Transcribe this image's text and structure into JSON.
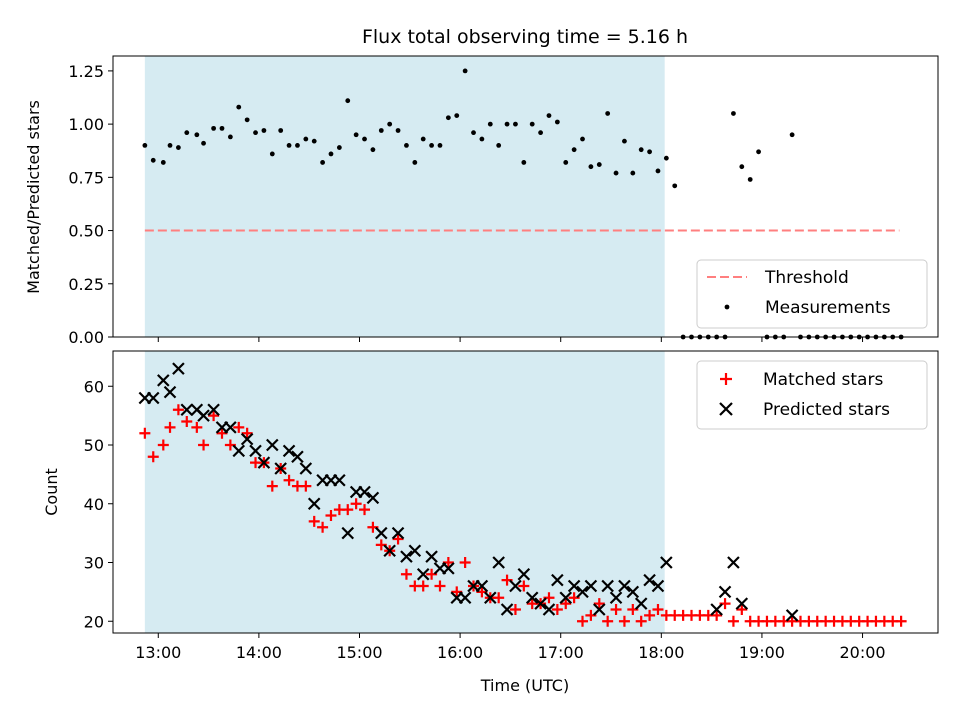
{
  "chart_data": [
    {
      "type": "scatter",
      "title": "Flux total observing time = 5.16 h",
      "xlabel": "",
      "ylabel": "Matched/Predicted stars",
      "ylim": [
        0,
        1.32
      ],
      "xlim": [
        "12:33",
        "20:45"
      ],
      "yticks": [
        0,
        0.25,
        0.5,
        0.75,
        1.0,
        1.25
      ],
      "ytick_labels": [
        "0.00",
        "0.25",
        "0.50",
        "0.75",
        "1.00",
        "1.25"
      ],
      "shaded_span": [
        "12:52",
        "18:02"
      ],
      "threshold": {
        "name": "Threshold",
        "y": 0.5,
        "x": [
          "12:52",
          "20:22"
        ],
        "color": "#ff7f7f"
      },
      "legend": {
        "placement": "bottom-right",
        "entries": [
          "Threshold",
          "Measurements"
        ]
      },
      "series": [
        {
          "name": "Measurements",
          "color": "#000000",
          "x": [
            "12:52",
            "12:57",
            "13:03",
            "13:07",
            "13:12",
            "13:17",
            "13:23",
            "13:27",
            "13:33",
            "13:38",
            "13:43",
            "13:48",
            "13:53",
            "13:58",
            "14:03",
            "14:08",
            "14:13",
            "14:18",
            "14:23",
            "14:28",
            "14:33",
            "14:38",
            "14:43",
            "14:48",
            "14:53",
            "14:58",
            "15:03",
            "15:08",
            "15:13",
            "15:18",
            "15:23",
            "15:28",
            "15:33",
            "15:38",
            "15:43",
            "15:48",
            "15:53",
            "15:58",
            "16:03",
            "16:08",
            "16:13",
            "16:18",
            "16:23",
            "16:28",
            "16:33",
            "16:38",
            "16:43",
            "16:48",
            "16:53",
            "16:58",
            "17:03",
            "17:08",
            "17:13",
            "17:18",
            "17:23",
            "17:28",
            "17:33",
            "17:38",
            "17:43",
            "17:48",
            "17:53",
            "17:58",
            "18:03",
            "18:08",
            "18:13",
            "18:18",
            "18:23",
            "18:28",
            "18:33",
            "18:38",
            "18:43",
            "18:48",
            "18:53",
            "18:58",
            "19:03",
            "19:08",
            "19:13",
            "19:18",
            "19:23",
            "19:28",
            "19:33",
            "19:38",
            "19:43",
            "19:48",
            "19:53",
            "19:58",
            "20:03",
            "20:08",
            "20:13",
            "20:18",
            "20:23"
          ],
          "y": [
            0.9,
            0.83,
            0.82,
            0.9,
            0.89,
            0.96,
            0.95,
            0.91,
            0.98,
            0.98,
            0.94,
            1.08,
            1.02,
            0.96,
            0.97,
            0.86,
            0.97,
            0.9,
            0.9,
            0.93,
            0.92,
            0.82,
            0.86,
            0.89,
            1.11,
            0.95,
            0.93,
            0.88,
            0.97,
            1.0,
            0.97,
            0.9,
            0.82,
            0.93,
            0.9,
            0.9,
            1.03,
            1.04,
            1.25,
            0.96,
            0.93,
            1.0,
            0.9,
            1.0,
            1.0,
            0.82,
            1.0,
            0.96,
            1.04,
            1.01,
            0.82,
            0.88,
            0.93,
            0.8,
            0.81,
            1.05,
            0.77,
            0.92,
            0.77,
            0.88,
            0.87,
            0.78,
            0.84,
            0.71,
            0,
            0,
            0,
            0,
            0,
            0,
            1.05,
            0.8,
            0.74,
            0.87,
            0,
            0,
            0,
            0.95,
            0,
            0,
            0,
            0,
            0,
            0,
            0,
            0,
            0,
            0,
            0,
            0,
            0
          ]
        }
      ]
    },
    {
      "type": "scatter",
      "title": "",
      "xlabel": "Time (UTC)",
      "ylabel": "Count",
      "ylim": [
        18,
        66
      ],
      "xlim": [
        "12:33",
        "20:45"
      ],
      "yticks": [
        20,
        30,
        40,
        50,
        60
      ],
      "xticks": [
        "13:00",
        "14:00",
        "15:00",
        "16:00",
        "17:00",
        "18:00",
        "19:00",
        "20:00"
      ],
      "xtick_labels": [
        "13:00",
        "14:00",
        "15:00",
        "16:00",
        "17:00",
        "18:00",
        "19:00",
        "20:00"
      ],
      "shaded_span": [
        "12:52",
        "18:02"
      ],
      "legend": {
        "placement": "top-right",
        "entries": [
          "Matched stars",
          "Predicted stars"
        ]
      },
      "series": [
        {
          "name": "Matched stars",
          "marker": "plus",
          "color": "#ff0000",
          "x": [
            "12:52",
            "12:57",
            "13:03",
            "13:07",
            "13:12",
            "13:17",
            "13:23",
            "13:27",
            "13:33",
            "13:38",
            "13:43",
            "13:48",
            "13:53",
            "13:58",
            "14:03",
            "14:08",
            "14:13",
            "14:18",
            "14:23",
            "14:28",
            "14:33",
            "14:38",
            "14:43",
            "14:48",
            "14:53",
            "14:58",
            "15:03",
            "15:08",
            "15:13",
            "15:18",
            "15:23",
            "15:28",
            "15:33",
            "15:38",
            "15:43",
            "15:48",
            "15:53",
            "15:58",
            "16:03",
            "16:08",
            "16:13",
            "16:18",
            "16:23",
            "16:28",
            "16:33",
            "16:38",
            "16:43",
            "16:48",
            "16:53",
            "16:58",
            "17:03",
            "17:08",
            "17:13",
            "17:18",
            "17:23",
            "17:28",
            "17:33",
            "17:38",
            "17:43",
            "17:48",
            "17:53",
            "17:58",
            "18:03",
            "18:08",
            "18:13",
            "18:18",
            "18:23",
            "18:28",
            "18:33",
            "18:38",
            "18:43",
            "18:48",
            "18:53",
            "18:58",
            "19:03",
            "19:08",
            "19:13",
            "19:18",
            "19:23",
            "19:28",
            "19:33",
            "19:38",
            "19:43",
            "19:48",
            "19:53",
            "19:58",
            "20:03",
            "20:08",
            "20:13",
            "20:18",
            "20:23"
          ],
          "y": [
            52,
            48,
            50,
            53,
            56,
            54,
            53,
            50,
            55,
            52,
            50,
            53,
            52,
            47,
            47,
            43,
            46,
            44,
            43,
            43,
            37,
            36,
            38,
            39,
            39,
            40,
            39,
            36,
            33,
            32,
            34,
            28,
            26,
            26,
            28,
            26,
            30,
            25,
            30,
            26,
            25,
            24,
            24,
            27,
            22,
            26,
            23,
            23,
            24,
            22,
            23,
            24,
            20,
            21,
            23,
            20,
            22,
            20,
            22,
            20,
            21,
            22,
            21,
            21,
            21,
            21,
            21,
            21,
            21,
            23,
            20,
            22,
            20,
            20,
            20,
            20,
            20,
            20,
            20,
            20,
            20,
            20,
            20,
            20,
            20,
            20,
            20,
            20,
            20,
            20,
            20
          ]
        },
        {
          "name": "Predicted stars",
          "marker": "x",
          "color": "#000000",
          "x": [
            "12:52",
            "12:57",
            "13:03",
            "13:07",
            "13:12",
            "13:17",
            "13:23",
            "13:27",
            "13:33",
            "13:38",
            "13:43",
            "13:48",
            "13:53",
            "13:58",
            "14:03",
            "14:08",
            "14:13",
            "14:18",
            "14:23",
            "14:28",
            "14:33",
            "14:38",
            "14:43",
            "14:48",
            "14:53",
            "14:58",
            "15:03",
            "15:08",
            "15:13",
            "15:18",
            "15:23",
            "15:28",
            "15:33",
            "15:38",
            "15:43",
            "15:48",
            "15:53",
            "15:58",
            "16:03",
            "16:08",
            "16:13",
            "16:18",
            "16:23",
            "16:28",
            "16:33",
            "16:38",
            "16:43",
            "16:48",
            "16:53",
            "16:58",
            "17:03",
            "17:08",
            "17:13",
            "17:18",
            "17:23",
            "17:28",
            "17:33",
            "17:38",
            "17:43",
            "17:48",
            "17:53",
            "17:58",
            "18:03",
            "18:33",
            "18:38",
            "18:43",
            "18:48",
            "19:18"
          ],
          "y": [
            58,
            58,
            61,
            59,
            63,
            56,
            56,
            55,
            56,
            53,
            53,
            49,
            51,
            49,
            47,
            50,
            46,
            49,
            48,
            46,
            40,
            44,
            44,
            44,
            35,
            42,
            42,
            41,
            35,
            32,
            35,
            31,
            32,
            28,
            31,
            29,
            29,
            24,
            24,
            26,
            26,
            24,
            30,
            22,
            26,
            28,
            24,
            23,
            22,
            27,
            24,
            26,
            25,
            26,
            22,
            26,
            24,
            26,
            25,
            23,
            27,
            26,
            30,
            22,
            25,
            30,
            23,
            21
          ]
        }
      ]
    }
  ]
}
